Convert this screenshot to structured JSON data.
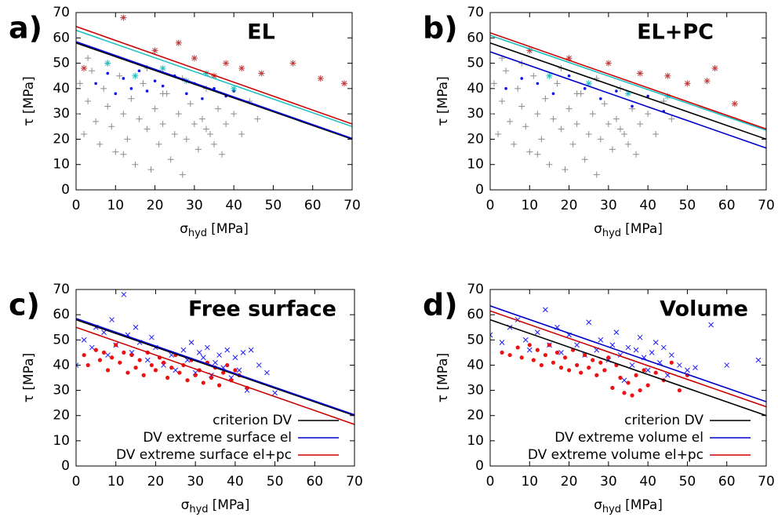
{
  "chart_data": [
    {
      "type": "scatter",
      "panel_label": "a)",
      "title": "EL",
      "xlabel": {
        "symbol": "σ",
        "subscript": "hyd",
        "unit": "[MPa]"
      },
      "ylabel": "τ [MPa]",
      "xlim": [
        0,
        70
      ],
      "ylim": [
        0,
        70
      ],
      "xticks": [
        0,
        10,
        20,
        30,
        40,
        50,
        60,
        70
      ],
      "yticks": [
        0,
        10,
        20,
        30,
        40,
        50,
        60,
        70
      ],
      "series": [
        {
          "type": "scatter",
          "marker": "plus",
          "color": "#8c8c8c",
          "x": [
            0,
            1,
            2,
            3,
            4,
            5,
            6,
            7,
            8,
            9,
            10,
            11,
            12,
            13,
            14,
            15,
            16,
            17,
            18,
            19,
            20,
            21,
            22,
            23,
            24,
            25,
            26,
            27,
            28,
            29,
            30,
            31,
            32,
            33,
            34,
            35,
            36,
            37,
            38,
            40,
            42,
            44,
            46,
            3,
            8,
            12,
            18,
            22,
            27,
            33
          ],
          "y": [
            30,
            42,
            22,
            35,
            47,
            27,
            18,
            40,
            33,
            25,
            15,
            45,
            30,
            20,
            36,
            10,
            28,
            42,
            24,
            8,
            32,
            18,
            26,
            38,
            12,
            22,
            30,
            6,
            20,
            34,
            26,
            16,
            28,
            40,
            22,
            18,
            32,
            14,
            26,
            30,
            22,
            35,
            28,
            52,
            50,
            14,
            48,
            38,
            44,
            24
          ]
        },
        {
          "type": "scatter",
          "marker": "dot",
          "color": "#1010e0",
          "x": [
            5,
            8,
            10,
            12,
            14,
            16,
            18,
            20,
            22,
            25,
            28,
            30,
            32,
            35,
            38,
            40
          ],
          "y": [
            42,
            46,
            38,
            44,
            40,
            47,
            39,
            43,
            41,
            45,
            38,
            42,
            36,
            40,
            37,
            39
          ]
        },
        {
          "type": "scatter",
          "marker": "star",
          "color": "#c0393b",
          "x": [
            2,
            12,
            20,
            26,
            30,
            35,
            38,
            42,
            47,
            55,
            62,
            68
          ],
          "y": [
            48,
            68,
            55,
            58,
            52,
            45,
            50,
            48,
            46,
            50,
            44,
            42
          ]
        },
        {
          "type": "scatter",
          "marker": "star",
          "color": "#20c0c0",
          "x": [
            8,
            15,
            22,
            28,
            33,
            40
          ],
          "y": [
            50,
            45,
            48,
            43,
            46,
            40
          ]
        },
        {
          "type": "line",
          "color": "#000000",
          "x": [
            0,
            70
          ],
          "y": [
            58,
            20
          ]
        },
        {
          "type": "line",
          "color": "#0000cc",
          "x": [
            0,
            70
          ],
          "y": [
            58.5,
            20.3
          ]
        },
        {
          "type": "line",
          "color": "#20c0c0",
          "x": [
            0,
            70
          ],
          "y": [
            63,
            25
          ]
        },
        {
          "type": "line",
          "color": "#cc0000",
          "x": [
            0,
            70
          ],
          "y": [
            64.5,
            26
          ]
        }
      ]
    },
    {
      "type": "scatter",
      "panel_label": "b)",
      "title": "EL+PC",
      "xlabel": {
        "symbol": "σ",
        "subscript": "hyd",
        "unit": "[MPa]"
      },
      "ylabel": "τ [MPa]",
      "xlim": [
        0,
        70
      ],
      "ylim": [
        0,
        70
      ],
      "xticks": [
        0,
        10,
        20,
        30,
        40,
        50,
        60,
        70
      ],
      "yticks": [
        0,
        10,
        20,
        30,
        40,
        50,
        60,
        70
      ],
      "series": [
        {
          "type": "scatter",
          "marker": "plus",
          "color": "#8c8c8c",
          "x": [
            0,
            1,
            2,
            3,
            4,
            5,
            6,
            7,
            8,
            9,
            10,
            11,
            12,
            13,
            14,
            15,
            16,
            17,
            18,
            19,
            20,
            21,
            22,
            23,
            24,
            25,
            26,
            27,
            28,
            29,
            30,
            31,
            32,
            33,
            34,
            35,
            36,
            37,
            38,
            40,
            42,
            44,
            46,
            3,
            8,
            12,
            18,
            22,
            27,
            33
          ],
          "y": [
            30,
            42,
            22,
            35,
            47,
            27,
            18,
            40,
            33,
            25,
            15,
            45,
            30,
            20,
            36,
            10,
            28,
            42,
            24,
            8,
            32,
            18,
            26,
            38,
            12,
            22,
            30,
            6,
            20,
            34,
            26,
            16,
            28,
            40,
            22,
            18,
            32,
            14,
            26,
            30,
            22,
            35,
            28,
            52,
            50,
            14,
            48,
            38,
            44,
            24
          ]
        },
        {
          "type": "scatter",
          "marker": "dot",
          "color": "#1010e0",
          "x": [
            4,
            8,
            12,
            16,
            20,
            24,
            28,
            32,
            36,
            40,
            44
          ],
          "y": [
            40,
            44,
            42,
            38,
            45,
            40,
            36,
            39,
            33,
            37,
            31
          ]
        },
        {
          "type": "scatter",
          "marker": "star",
          "color": "#c0393b",
          "x": [
            10,
            20,
            30,
            38,
            45,
            50,
            55,
            57,
            62
          ],
          "y": [
            55,
            52,
            50,
            46,
            45,
            42,
            43,
            48,
            34
          ]
        },
        {
          "type": "scatter",
          "marker": "star",
          "color": "#20c0c0",
          "x": [
            15,
            25,
            35,
            45
          ],
          "y": [
            45,
            42,
            38,
            37
          ]
        },
        {
          "type": "line",
          "color": "#000000",
          "x": [
            0,
            70
          ],
          "y": [
            58,
            20
          ]
        },
        {
          "type": "line",
          "color": "#0000cc",
          "x": [
            0,
            70
          ],
          "y": [
            54.5,
            16.5
          ]
        },
        {
          "type": "line",
          "color": "#20c0c0",
          "x": [
            0,
            70
          ],
          "y": [
            61,
            23.5
          ]
        },
        {
          "type": "line",
          "color": "#cc0000",
          "x": [
            0,
            70
          ],
          "y": [
            62,
            24
          ]
        }
      ]
    },
    {
      "type": "scatter",
      "panel_label": "c)",
      "title": "Free surface",
      "legend": "lower right",
      "xlabel": {
        "symbol": "σ",
        "subscript": "hyd",
        "unit": "[MPa]"
      },
      "ylabel": "τ [MPa]",
      "xlim": [
        0,
        70
      ],
      "ylim": [
        0,
        70
      ],
      "xticks": [
        0,
        10,
        20,
        30,
        40,
        50,
        60,
        70
      ],
      "yticks": [
        0,
        10,
        20,
        30,
        40,
        50,
        60,
        70
      ],
      "series": [
        {
          "type": "scatter",
          "marker": "cross",
          "color": "#1a1aff",
          "x": [
            0,
            2,
            4,
            5,
            7,
            8,
            9,
            10,
            12,
            13,
            14,
            15,
            16,
            18,
            19,
            20,
            22,
            24,
            25,
            27,
            28,
            29,
            30,
            31,
            32,
            33,
            34,
            35,
            36,
            37,
            38,
            39,
            40,
            41,
            42,
            43,
            44,
            46,
            48,
            50
          ],
          "y": [
            40,
            50,
            47,
            55,
            53,
            44,
            58,
            48,
            68,
            52,
            45,
            55,
            49,
            42,
            51,
            47,
            40,
            44,
            38,
            46,
            42,
            49,
            37,
            45,
            43,
            47,
            36,
            41,
            44,
            39,
            46,
            35,
            43,
            38,
            45,
            30,
            46,
            40,
            37,
            29
          ]
        },
        {
          "type": "scatter",
          "marker": "bigdot",
          "color": "#ee1111",
          "x": [
            2,
            3,
            5,
            6,
            7,
            8,
            9,
            10,
            11,
            12,
            13,
            14,
            15,
            16,
            17,
            18,
            19,
            20,
            21,
            22,
            23,
            24,
            25,
            26,
            27,
            28,
            29,
            30,
            31,
            32,
            33,
            34,
            35,
            36,
            37,
            38,
            39,
            40,
            41,
            43
          ],
          "y": [
            44,
            40,
            46,
            42,
            45,
            38,
            43,
            48,
            41,
            45,
            37,
            44,
            39,
            42,
            36,
            45,
            40,
            38,
            43,
            41,
            35,
            39,
            44,
            37,
            40,
            34,
            42,
            36,
            38,
            33,
            41,
            35,
            39,
            32,
            37,
            40,
            34,
            38,
            36,
            31
          ]
        },
        {
          "type": "line",
          "name": "criterion DV",
          "color": "#000000",
          "x": [
            0,
            70
          ],
          "y": [
            58,
            20
          ]
        },
        {
          "type": "line",
          "name": "DV extreme surface el",
          "color": "#0000cc",
          "x": [
            0,
            70
          ],
          "y": [
            58.5,
            20.3
          ]
        },
        {
          "type": "line",
          "name": "DV extreme surface el+pc",
          "color": "#cc0000",
          "x": [
            0,
            70
          ],
          "y": [
            55,
            16.5
          ]
        }
      ]
    },
    {
      "type": "scatter",
      "panel_label": "d)",
      "title": "Volume",
      "legend": "lower right",
      "xlabel": {
        "symbol": "σ",
        "subscript": "hyd",
        "unit": "[MPa]"
      },
      "ylabel": "τ [MPa]",
      "xlim": [
        0,
        70
      ],
      "ylim": [
        0,
        70
      ],
      "xticks": [
        0,
        10,
        20,
        30,
        40,
        50,
        60,
        70
      ],
      "yticks": [
        0,
        10,
        20,
        30,
        40,
        50,
        60,
        70
      ],
      "series": [
        {
          "type": "scatter",
          "marker": "cross",
          "color": "#1a1aff",
          "x": [
            0,
            3,
            5,
            7,
            9,
            10,
            12,
            14,
            15,
            17,
            18,
            20,
            22,
            24,
            25,
            27,
            28,
            30,
            31,
            32,
            33,
            34,
            35,
            36,
            37,
            38,
            39,
            40,
            41,
            42,
            43,
            44,
            45,
            46,
            48,
            50,
            52,
            56,
            60,
            68
          ],
          "y": [
            52,
            49,
            55,
            58,
            50,
            46,
            53,
            62,
            48,
            55,
            45,
            52,
            48,
            44,
            57,
            46,
            50,
            42,
            48,
            53,
            44,
            34,
            47,
            40,
            46,
            51,
            43,
            38,
            45,
            49,
            41,
            47,
            36,
            44,
            40,
            38,
            39,
            56,
            40,
            42
          ]
        },
        {
          "type": "scatter",
          "marker": "bigdot",
          "color": "#ee1111",
          "x": [
            3,
            5,
            7,
            8,
            10,
            11,
            12,
            13,
            14,
            15,
            16,
            17,
            18,
            19,
            20,
            21,
            22,
            23,
            24,
            25,
            26,
            27,
            28,
            29,
            30,
            31,
            32,
            33,
            34,
            35,
            36,
            37,
            38,
            39,
            40,
            42,
            44,
            46,
            48,
            50
          ],
          "y": [
            45,
            44,
            47,
            43,
            48,
            42,
            46,
            40,
            44,
            48,
            41,
            45,
            39,
            43,
            38,
            46,
            40,
            37,
            44,
            39,
            42,
            36,
            41,
            38,
            43,
            31,
            40,
            35,
            29,
            33,
            28,
            36,
            30,
            38,
            32,
            37,
            34,
            41,
            30,
            36
          ]
        },
        {
          "type": "line",
          "name": "criterion DV",
          "color": "#000000",
          "x": [
            0,
            70
          ],
          "y": [
            58,
            20
          ]
        },
        {
          "type": "line",
          "name": "DV extreme volume el",
          "color": "#0000cc",
          "x": [
            0,
            70
          ],
          "y": [
            63.5,
            25.5
          ]
        },
        {
          "type": "line",
          "name": "DV extreme volume el+pc",
          "color": "#cc0000",
          "x": [
            0,
            70
          ],
          "y": [
            61.5,
            23.5
          ]
        }
      ]
    }
  ]
}
